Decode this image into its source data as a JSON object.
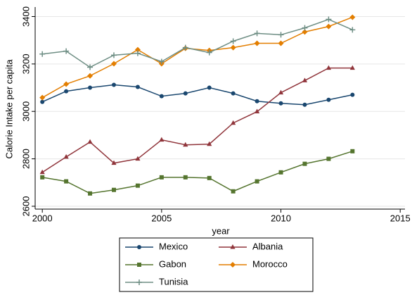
{
  "chart_data": {
    "type": "line",
    "x_label": "year",
    "y_label": "Calorie Intake per capita",
    "x": [
      2000,
      2001,
      2002,
      2003,
      2004,
      2005,
      2006,
      2007,
      2008,
      2009,
      2010,
      2011,
      2012,
      2013
    ],
    "series": [
      {
        "name": "Mexico",
        "color": "#1a476f",
        "marker": "circle",
        "values": [
          3040,
          3085,
          3100,
          3112,
          3103,
          3064,
          3076,
          3100,
          3076,
          3043,
          3034,
          3028,
          3049,
          3070
        ]
      },
      {
        "name": "Albania",
        "color": "#90353b",
        "marker": "triangle",
        "values": [
          2743,
          2808,
          2871,
          2782,
          2800,
          2880,
          2859,
          2862,
          2951,
          2999,
          3079,
          3130,
          3183,
          3183
        ]
      },
      {
        "name": "Gabon",
        "color": "#55752f",
        "marker": "square",
        "values": [
          2722,
          2705,
          2654,
          2669,
          2687,
          2722,
          2722,
          2719,
          2663,
          2705,
          2743,
          2779,
          2800,
          2832
        ]
      },
      {
        "name": "Morocco",
        "color": "#e37e00",
        "marker": "diamond",
        "values": [
          3058,
          3115,
          3150,
          3201,
          3260,
          3201,
          3266,
          3257,
          3269,
          3287,
          3287,
          3335,
          3358,
          3397
        ]
      },
      {
        "name": "Tunisia",
        "color": "#6e8e84",
        "marker": "plus",
        "values": [
          3242,
          3254,
          3186,
          3237,
          3245,
          3210,
          3269,
          3248,
          3296,
          3329,
          3323,
          3352,
          3388,
          3344
        ]
      }
    ],
    "xlim": [
      1999.7,
      2015.2
    ],
    "xticks": [
      2000,
      2005,
      2010,
      2015
    ],
    "ylim": [
      2588,
      3440
    ],
    "yticks": [
      2600,
      2800,
      3000,
      3200,
      3400
    ],
    "grid": true,
    "legend": "bottom"
  }
}
